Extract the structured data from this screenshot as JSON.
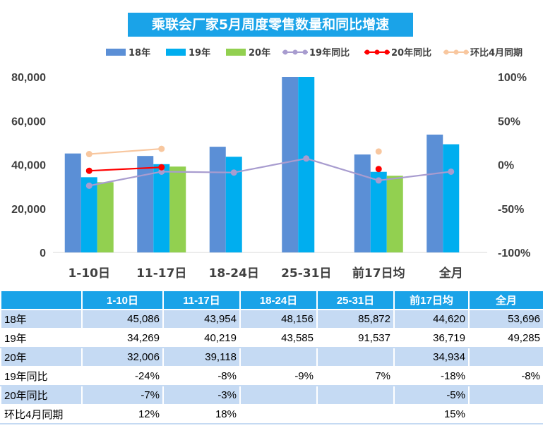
{
  "chart_data": {
    "type": "bar",
    "title": "乘联会厂家5月周度零售数量和同比增速",
    "categories": [
      "1-10日",
      "11-17日",
      "18-24日",
      "25-31日",
      "前17日均",
      "全月"
    ],
    "ylim": [
      0,
      80000
    ],
    "yticks": [
      "80,000",
      "60,000",
      "40,000",
      "20,000",
      "0"
    ],
    "y2lim": [
      -100,
      100
    ],
    "y2ticks": [
      "100%",
      "50%",
      "0%",
      "-50%",
      "-100%"
    ],
    "legend_position": "top",
    "bar_series": [
      {
        "name": "18年",
        "color": "#5b8fd6",
        "values": [
          45086,
          43954,
          48156,
          85872,
          44620,
          53696
        ]
      },
      {
        "name": "19年",
        "color": "#00aeef",
        "values": [
          34269,
          40219,
          43585,
          91537,
          36719,
          49285
        ]
      },
      {
        "name": "20年",
        "color": "#92d050",
        "values": [
          32006,
          39118,
          null,
          null,
          34934,
          null
        ]
      }
    ],
    "line_series": [
      {
        "name": "19年同比",
        "color": "#a89ccf",
        "values": [
          -24,
          -8,
          -9,
          7,
          -18,
          -8
        ]
      },
      {
        "name": "20年同比",
        "color": "#ff0000",
        "values": [
          -7,
          -3,
          null,
          null,
          -5,
          null
        ]
      },
      {
        "name": "环比4月同期",
        "color": "#f8c79f",
        "values": [
          12,
          18,
          null,
          null,
          15,
          null
        ]
      }
    ]
  },
  "table": {
    "headers": [
      "",
      "1-10日",
      "11-17日",
      "18-24日",
      "25-31日",
      "前17日均",
      "全月"
    ],
    "rows": [
      {
        "label": "18年",
        "cells": [
          "45,086",
          "43,954",
          "48,156",
          "85,872",
          "44,620",
          "53,696"
        ]
      },
      {
        "label": "19年",
        "cells": [
          "34,269",
          "40,219",
          "43,585",
          "91,537",
          "36,719",
          "49,285"
        ]
      },
      {
        "label": "20年",
        "cells": [
          "32,006",
          "39,118",
          "",
          "",
          "34,934",
          ""
        ]
      },
      {
        "label": "19年同比",
        "cells": [
          "-24%",
          "-8%",
          "-9%",
          "7%",
          "-18%",
          "-8%"
        ]
      },
      {
        "label": "20年同比",
        "cells": [
          "-7%",
          "-3%",
          "",
          "",
          "-5%",
          ""
        ]
      },
      {
        "label": "环比4月同期",
        "cells": [
          "12%",
          "18%",
          "",
          "",
          "15%",
          ""
        ]
      }
    ]
  }
}
